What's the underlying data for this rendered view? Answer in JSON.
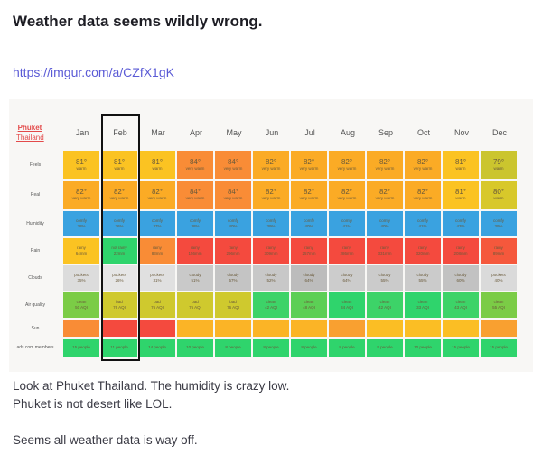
{
  "post": {
    "title": "Weather data seems wildly wrong.",
    "link": "https://imgur.com/a/CZfX1gK",
    "body": [
      "Look at Phuket Thailand.  The humidity is crazy low.",
      "Phuket is not desert like LOL.",
      "",
      "Seems all weather data is way off."
    ]
  },
  "table": {
    "city": "Phuket",
    "country": "Thailand",
    "highlighted_month": "Feb",
    "months": [
      "Jan",
      "Feb",
      "Mar",
      "Apr",
      "May",
      "Jun",
      "Jul",
      "Aug",
      "Sep",
      "Oct",
      "Nov",
      "Dec"
    ],
    "rows": [
      {
        "label": "Feels",
        "big": true,
        "cells": [
          [
            "81°",
            "warm",
            "#fbc322"
          ],
          [
            "81°",
            "warm",
            "#fbc322"
          ],
          [
            "81°",
            "warm",
            "#fbc322"
          ],
          [
            "84°",
            "very warm",
            "#f98c36"
          ],
          [
            "84°",
            "very warm",
            "#f98c36"
          ],
          [
            "82°",
            "very warm",
            "#fbab25"
          ],
          [
            "82°",
            "very warm",
            "#fbab25"
          ],
          [
            "82°",
            "very warm",
            "#fbab25"
          ],
          [
            "82°",
            "very warm",
            "#fbab25"
          ],
          [
            "82°",
            "very warm",
            "#fbab25"
          ],
          [
            "81°",
            "warm",
            "#fbc322"
          ],
          [
            "79°",
            "warm",
            "#cbc52e"
          ]
        ]
      },
      {
        "label": "Real",
        "big": true,
        "cells": [
          [
            "82°",
            "very warm",
            "#fbab25"
          ],
          [
            "82°",
            "very warm",
            "#fbab25"
          ],
          [
            "82°",
            "very warm",
            "#fbab25"
          ],
          [
            "84°",
            "very warm",
            "#f98c36"
          ],
          [
            "84°",
            "very warm",
            "#f98c36"
          ],
          [
            "82°",
            "very warm",
            "#fbab25"
          ],
          [
            "82°",
            "very warm",
            "#fbab25"
          ],
          [
            "82°",
            "very warm",
            "#fbab25"
          ],
          [
            "82°",
            "very warm",
            "#fbab25"
          ],
          [
            "82°",
            "very warm",
            "#fbab25"
          ],
          [
            "81°",
            "warm",
            "#fbc322"
          ],
          [
            "80°",
            "warm",
            "#d8c82a"
          ]
        ]
      },
      {
        "label": "Humidity",
        "cells": [
          [
            "comfy",
            "38%",
            "#3aa2e0"
          ],
          [
            "comfy",
            "36%",
            "#3aa2e0"
          ],
          [
            "comfy",
            "37%",
            "#3aa2e0"
          ],
          [
            "comfy",
            "38%",
            "#3aa2e0"
          ],
          [
            "comfy",
            "40%",
            "#3aa2e0"
          ],
          [
            "comfy",
            "39%",
            "#3aa2e0"
          ],
          [
            "comfy",
            "40%",
            "#3aa2e0"
          ],
          [
            "comfy",
            "41%",
            "#3aa2e0"
          ],
          [
            "comfy",
            "40%",
            "#3aa2e0"
          ],
          [
            "comfy",
            "41%",
            "#3aa2e0"
          ],
          [
            "comfy",
            "43%",
            "#3aa2e0"
          ],
          [
            "comfy",
            "39%",
            "#3aa2e0"
          ]
        ]
      },
      {
        "label": "Rain",
        "cells": [
          [
            "rainy",
            "64mm",
            "#fbc322"
          ],
          [
            "not rainy",
            "22mm",
            "#2fd46c"
          ],
          [
            "rainy",
            "83mm",
            "#f98c36"
          ],
          [
            "rainy",
            "156mm",
            "#f44a3e"
          ],
          [
            "rainy",
            "296mm",
            "#f44a3e"
          ],
          [
            "rainy",
            "309mm",
            "#f44a3e"
          ],
          [
            "rainy",
            "257mm",
            "#f44a3e"
          ],
          [
            "rainy",
            "286mm",
            "#f44a3e"
          ],
          [
            "rainy",
            "331mm",
            "#f44a3e"
          ],
          [
            "rainy",
            "320mm",
            "#f44a3e"
          ],
          [
            "rainy",
            "208mm",
            "#f44a3e"
          ],
          [
            "rainy",
            "89mm",
            "#f5583c"
          ]
        ]
      },
      {
        "label": "Clouds",
        "cells": [
          [
            "pockets",
            "35%",
            "#dcdcdc"
          ],
          [
            "pockets",
            "26%",
            "#e6e6e6"
          ],
          [
            "pockets",
            "31%",
            "#e0e0e0"
          ],
          [
            "cloudy",
            "51%",
            "#c9c9c9"
          ],
          [
            "cloudy",
            "57%",
            "#c4c4c4"
          ],
          [
            "cloudy",
            "52%",
            "#c8c8c8"
          ],
          [
            "cloudy",
            "64%",
            "#bcbcbc"
          ],
          [
            "cloudy",
            "64%",
            "#cccccc"
          ],
          [
            "cloudy",
            "55%",
            "#cbcbcb"
          ],
          [
            "cloudy",
            "55%",
            "#cbcbcb"
          ],
          [
            "cloudy",
            "60%",
            "#c2c2c2"
          ],
          [
            "pockets",
            "40%",
            "#dadada"
          ]
        ]
      },
      {
        "label": "Air quality",
        "cells": [
          [
            "clean",
            "50 AQI",
            "#7bcc46"
          ],
          [
            "bad",
            "76 AQI",
            "#cfc92e"
          ],
          [
            "bad",
            "76 AQI",
            "#cfc92e"
          ],
          [
            "bad",
            "76 AQI",
            "#cfc92e"
          ],
          [
            "bad",
            "76 AQI",
            "#cfc92e"
          ],
          [
            "clean",
            "42 AQI",
            "#3dd368"
          ],
          [
            "clean",
            "48 AQI",
            "#5ccf55"
          ],
          [
            "clean",
            "34 AQI",
            "#2fd46c"
          ],
          [
            "clean",
            "42 AQI",
            "#3dd368"
          ],
          [
            "clean",
            "33 AQI",
            "#2fd46c"
          ],
          [
            "clean",
            "43 AQI",
            "#3dd368"
          ],
          [
            "clean",
            "55 AQI",
            "#7bcc46"
          ]
        ]
      },
      {
        "label": "Sun",
        "cells": [
          [
            "",
            "",
            "#f98c36"
          ],
          [
            "",
            "",
            "#f44a3e"
          ],
          [
            "",
            "",
            "#f44a3e"
          ],
          [
            "",
            "",
            "#fbb426"
          ],
          [
            "",
            "",
            "#fbb426"
          ],
          [
            "",
            "",
            "#fbb426"
          ],
          [
            "",
            "",
            "#fbb426"
          ],
          [
            "",
            "",
            "#f9a030"
          ],
          [
            "",
            "",
            "#fbbe24"
          ],
          [
            "",
            "",
            "#fbbe24"
          ],
          [
            "",
            "",
            "#fbbe24"
          ],
          [
            "",
            "",
            "#f9a030"
          ]
        ]
      },
      {
        "label": "ads.com members",
        "cells": [
          [
            "15 people",
            "",
            "#2fd46c"
          ],
          [
            "11 people",
            "",
            "#2fd46c"
          ],
          [
            "14 people",
            "",
            "#2fd46c"
          ],
          [
            "10 people",
            "",
            "#2fd46c"
          ],
          [
            "8 people",
            "",
            "#2fd46c"
          ],
          [
            "8 people",
            "",
            "#2fd46c"
          ],
          [
            "8 people",
            "",
            "#2fd46c"
          ],
          [
            "8 people",
            "",
            "#2fd46c"
          ],
          [
            "8 people",
            "",
            "#2fd46c"
          ],
          [
            "10 people",
            "",
            "#2fd46c"
          ],
          [
            "15 people",
            "",
            "#2fd46c"
          ],
          [
            "15 people",
            "",
            "#2fd46c"
          ]
        ]
      }
    ]
  }
}
